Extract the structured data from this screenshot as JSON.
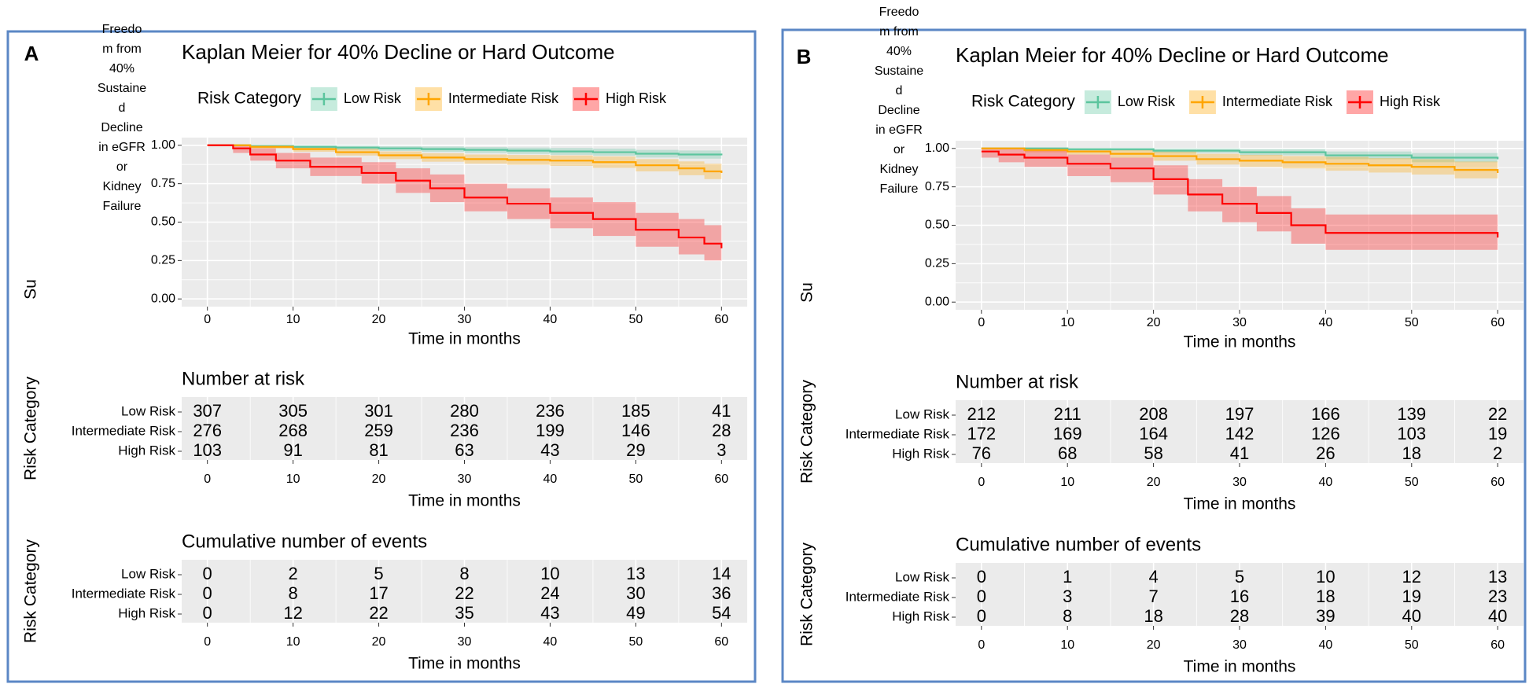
{
  "chart_data": [
    {
      "type": "step",
      "panel": "A",
      "title": "Kaplan Meier for 40% Decline or Hard Outcome",
      "legend_title": "Risk Category",
      "x_label": "Time in months",
      "y_label": "Su",
      "note_lines": [
        "Freedo",
        "m from",
        "40%",
        "Sustaine",
        "d",
        "Decline",
        "in eGFR",
        "or",
        "Kidney",
        "Failure"
      ],
      "xlim": [
        -3,
        63
      ],
      "xticks": [
        0,
        10,
        20,
        30,
        40,
        50,
        60
      ],
      "ylim": [
        -0.05,
        1.05
      ],
      "yticks": [
        {
          "value": 0,
          "label": "0.00"
        },
        {
          "value": 0.25,
          "label": "0.25"
        },
        {
          "value": 0.5,
          "label": "0.50"
        },
        {
          "value": 0.75,
          "label": "0.75"
        },
        {
          "value": 1,
          "label": "1.00"
        }
      ],
      "grid": true,
      "series": [
        {
          "name": "Low Risk",
          "color": "#5cc59e",
          "x": [
            0,
            5,
            10,
            15,
            20,
            25,
            30,
            35,
            40,
            45,
            50,
            55,
            60
          ],
          "values": [
            1,
            0.995,
            0.99,
            0.985,
            0.98,
            0.975,
            0.97,
            0.965,
            0.96,
            0.955,
            0.945,
            0.94,
            0.935
          ],
          "lower": [
            1,
            0.985,
            0.978,
            0.97,
            0.963,
            0.957,
            0.95,
            0.944,
            0.938,
            0.932,
            0.92,
            0.913,
            0.905
          ],
          "upper": [
            1,
            1,
            1,
            0.998,
            0.995,
            0.992,
            0.988,
            0.985,
            0.982,
            0.978,
            0.97,
            0.966,
            0.962
          ]
        },
        {
          "name": "Intermediate Risk",
          "color": "#ffa500",
          "x": [
            0,
            5,
            10,
            15,
            20,
            25,
            30,
            35,
            40,
            45,
            50,
            55,
            58,
            60
          ],
          "values": [
            1,
            0.99,
            0.975,
            0.955,
            0.935,
            0.92,
            0.91,
            0.905,
            0.9,
            0.89,
            0.87,
            0.85,
            0.83,
            0.82
          ],
          "lower": [
            1,
            0.978,
            0.958,
            0.933,
            0.91,
            0.893,
            0.88,
            0.873,
            0.866,
            0.853,
            0.83,
            0.805,
            0.78,
            0.765
          ],
          "upper": [
            1,
            1,
            0.993,
            0.978,
            0.96,
            0.948,
            0.94,
            0.937,
            0.934,
            0.927,
            0.91,
            0.895,
            0.88,
            0.875
          ]
        },
        {
          "name": "High Risk",
          "color": "#ff0000",
          "x": [
            0,
            3,
            5,
            8,
            12,
            18,
            22,
            26,
            30,
            35,
            40,
            45,
            50,
            55,
            58,
            60
          ],
          "values": [
            1,
            0.98,
            0.94,
            0.9,
            0.86,
            0.82,
            0.77,
            0.72,
            0.66,
            0.62,
            0.56,
            0.52,
            0.45,
            0.4,
            0.36,
            0.33
          ],
          "lower": [
            1,
            0.95,
            0.9,
            0.85,
            0.8,
            0.75,
            0.69,
            0.63,
            0.57,
            0.52,
            0.46,
            0.41,
            0.34,
            0.29,
            0.25,
            0.22
          ],
          "upper": [
            1,
            1,
            0.98,
            0.95,
            0.92,
            0.89,
            0.85,
            0.81,
            0.75,
            0.72,
            0.66,
            0.63,
            0.56,
            0.52,
            0.48,
            0.45
          ]
        }
      ]
    },
    {
      "type": "table",
      "title": "Number at risk",
      "x_label": "Time in months",
      "y_label": "Risk Category",
      "xlim": [
        -3,
        63
      ],
      "xticks": [
        0,
        10,
        20,
        30,
        40,
        50,
        60
      ],
      "x": [
        0,
        10,
        20,
        30,
        40,
        50,
        60
      ],
      "series": [
        {
          "name": "Low Risk",
          "color": "#5cc59e",
          "values": [
            307,
            305,
            301,
            280,
            236,
            185,
            41
          ]
        },
        {
          "name": "Intermediate Risk",
          "color": "#ffa500",
          "values": [
            276,
            268,
            259,
            236,
            199,
            146,
            28
          ]
        },
        {
          "name": "High Risk",
          "color": "#ff0000",
          "values": [
            103,
            91,
            81,
            63,
            43,
            29,
            3
          ]
        }
      ]
    },
    {
      "type": "table",
      "title": "Cumulative number of events",
      "x_label": "Time in months",
      "y_label": "Risk Category",
      "xlim": [
        -3,
        63
      ],
      "xticks": [
        0,
        10,
        20,
        30,
        40,
        50,
        60
      ],
      "x": [
        0,
        10,
        20,
        30,
        40,
        50,
        60
      ],
      "series": [
        {
          "name": "Low Risk",
          "color": "#5cc59e",
          "values": [
            0,
            2,
            5,
            8,
            10,
            13,
            14
          ]
        },
        {
          "name": "Intermediate Risk",
          "color": "#ffa500",
          "values": [
            0,
            8,
            17,
            22,
            24,
            30,
            36
          ]
        },
        {
          "name": "High Risk",
          "color": "#ff0000",
          "values": [
            0,
            12,
            22,
            35,
            43,
            49,
            54
          ]
        }
      ]
    },
    {
      "type": "step",
      "panel": "B",
      "title": "Kaplan Meier for 40% Decline or Hard Outcome",
      "legend_title": "Risk Category",
      "x_label": "Time in months",
      "y_label": "Su",
      "note_lines": [
        "Freedo",
        "m from",
        "40%",
        "Sustaine",
        "d",
        "Decline",
        "in eGFR",
        "or",
        "Kidney",
        "Failure"
      ],
      "xlim": [
        -3,
        63
      ],
      "xticks": [
        0,
        10,
        20,
        30,
        40,
        50,
        60
      ],
      "ylim": [
        -0.05,
        1.05
      ],
      "yticks": [
        {
          "value": 0,
          "label": "0.00"
        },
        {
          "value": 0.25,
          "label": "0.25"
        },
        {
          "value": 0.5,
          "label": "0.50"
        },
        {
          "value": 0.75,
          "label": "0.75"
        },
        {
          "value": 1,
          "label": "1.00"
        }
      ],
      "grid": true,
      "series": [
        {
          "name": "Low Risk",
          "color": "#5cc59e",
          "x": [
            0,
            10,
            20,
            30,
            40,
            50,
            60
          ],
          "values": [
            1,
            0.995,
            0.985,
            0.975,
            0.955,
            0.94,
            0.93
          ],
          "lower": [
            1,
            0.985,
            0.97,
            0.955,
            0.93,
            0.91,
            0.895
          ],
          "upper": [
            1,
            1,
            1,
            0.995,
            0.98,
            0.97,
            0.963
          ]
        },
        {
          "name": "Intermediate Risk",
          "color": "#ffa500",
          "x": [
            0,
            5,
            10,
            15,
            20,
            25,
            30,
            35,
            40,
            45,
            50,
            55,
            60
          ],
          "values": [
            1,
            0.99,
            0.98,
            0.965,
            0.95,
            0.93,
            0.92,
            0.91,
            0.9,
            0.89,
            0.88,
            0.86,
            0.84
          ],
          "lower": [
            1,
            0.975,
            0.96,
            0.94,
            0.92,
            0.895,
            0.88,
            0.87,
            0.855,
            0.843,
            0.83,
            0.805,
            0.78
          ],
          "upper": [
            1,
            1,
            1,
            0.99,
            0.98,
            0.965,
            0.958,
            0.95,
            0.945,
            0.937,
            0.93,
            0.915,
            0.9
          ]
        },
        {
          "name": "High Risk",
          "color": "#ff0000",
          "x": [
            0,
            2,
            5,
            10,
            15,
            20,
            24,
            28,
            32,
            36,
            40,
            60
          ],
          "values": [
            0.98,
            0.96,
            0.94,
            0.9,
            0.87,
            0.8,
            0.7,
            0.64,
            0.58,
            0.5,
            0.45,
            0.42
          ],
          "lower": [
            0.94,
            0.91,
            0.88,
            0.82,
            0.78,
            0.7,
            0.59,
            0.52,
            0.46,
            0.38,
            0.34,
            0.33
          ],
          "upper": [
            1,
            1,
            0.99,
            0.96,
            0.94,
            0.89,
            0.8,
            0.75,
            0.69,
            0.61,
            0.57,
            0.55
          ]
        }
      ]
    },
    {
      "type": "table",
      "title": "Number at risk",
      "x_label": "Time in months",
      "y_label": "Risk Category",
      "xlim": [
        -3,
        63
      ],
      "xticks": [
        0,
        10,
        20,
        30,
        40,
        50,
        60
      ],
      "x": [
        0,
        10,
        20,
        30,
        40,
        50,
        60
      ],
      "series": [
        {
          "name": "Low Risk",
          "color": "#5cc59e",
          "values": [
            212,
            211,
            208,
            197,
            166,
            139,
            22
          ]
        },
        {
          "name": "Intermediate Risk",
          "color": "#ffa500",
          "values": [
            172,
            169,
            164,
            142,
            126,
            103,
            19
          ]
        },
        {
          "name": "High Risk",
          "color": "#ff0000",
          "values": [
            76,
            68,
            58,
            41,
            26,
            18,
            2
          ]
        }
      ]
    },
    {
      "type": "table",
      "title": "Cumulative number of events",
      "x_label": "Time in months",
      "y_label": "Risk Category",
      "xlim": [
        -3,
        63
      ],
      "xticks": [
        0,
        10,
        20,
        30,
        40,
        50,
        60
      ],
      "x": [
        0,
        10,
        20,
        30,
        40,
        50,
        60
      ],
      "series": [
        {
          "name": "Low Risk",
          "color": "#5cc59e",
          "values": [
            0,
            1,
            4,
            5,
            10,
            12,
            13
          ]
        },
        {
          "name": "Intermediate Risk",
          "color": "#ffa500",
          "values": [
            0,
            3,
            7,
            16,
            18,
            19,
            23
          ]
        },
        {
          "name": "High Risk",
          "color": "#ff0000",
          "values": [
            0,
            8,
            18,
            28,
            39,
            40,
            40
          ]
        }
      ]
    }
  ]
}
